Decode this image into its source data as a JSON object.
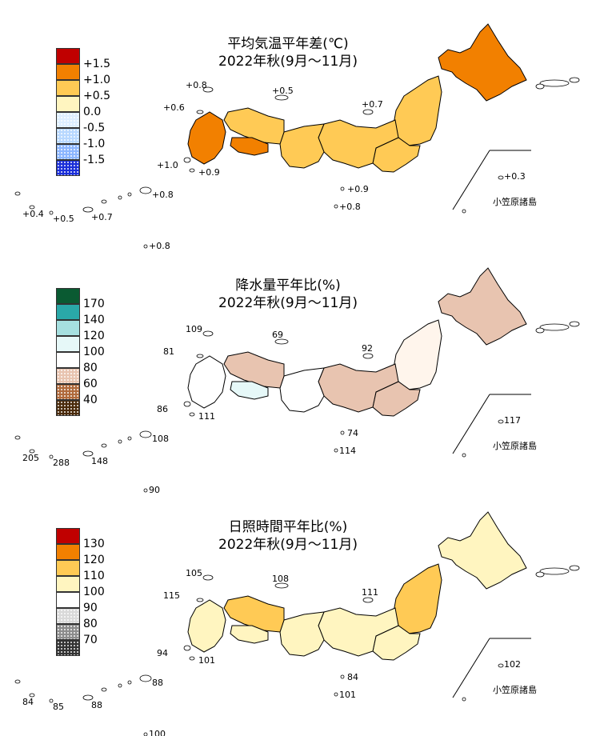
{
  "panels": [
    {
      "title_line1": "平均気温平年差(℃)",
      "title_line2": "2022年秋(9月～11月)",
      "legend": {
        "colors": [
          "#c00000",
          "#f28000",
          "#ffca55",
          "#fff5c0",
          "#ddeeff",
          "#b8d8ff",
          "#8cb6ff",
          "#1a2ed8"
        ],
        "patterned": [
          false,
          false,
          false,
          false,
          true,
          true,
          true,
          true
        ],
        "ticks": [
          "+1.5",
          "+1.0",
          "+0.5",
          "0.0",
          "-0.5",
          "-1.0",
          "-1.5"
        ]
      },
      "region_fills": {
        "hokkaido": "#f28000",
        "tohoku": "#ffca55",
        "kanto": "#ffca55",
        "chubu": "#ffca55",
        "kinki": "#ffca55",
        "chugoku": "#ffca55",
        "shikoku": "#f28000",
        "kyushu": "#f28000"
      },
      "labels": {
        "oki": "+0.8",
        "sado": "+0.5",
        "tsushima": "+0.6",
        "izu": "+0.7",
        "goto": "+1.0",
        "yaku": "+0.9",
        "hachijo": "+0.9",
        "chichijima": "+0.3",
        "minamidaito": "+0.8",
        "okinawa": "+0.7",
        "ishigaki": "+0.4",
        "yonaguni": "+0.5",
        "amami": "+0.8",
        "ogasawara_lower": "+0.8"
      },
      "ogasawara_name": "小笠原諸島"
    },
    {
      "title_line1": "降水量平年比(%)",
      "title_line2": "2022年秋(9月～11月)",
      "legend": {
        "colors": [
          "#0a5a32",
          "#2aa8a8",
          "#a6e0e0",
          "#e6f8f8",
          "#ffffff",
          "#e8c4b0",
          "#b06a3c",
          "#4a2a0a"
        ],
        "patterned": [
          false,
          false,
          false,
          false,
          false,
          true,
          true,
          true
        ],
        "ticks": [
          "170",
          "140",
          "120",
          "100",
          "80",
          "60",
          "40"
        ]
      },
      "region_fills": {
        "hokkaido": "#e8c4b0",
        "tohoku": "#fff5ec",
        "kanto": "#e8c4b0",
        "chubu": "#e8c4b0",
        "kinki": "#ffffff",
        "chugoku": "#e8c4b0",
        "shikoku": "#e6f8f8",
        "kyushu": "#ffffff"
      },
      "labels": {
        "oki": "109",
        "sado": "69",
        "tsushima": "81",
        "izu": "92",
        "goto": "86",
        "yaku": "111",
        "hachijo": "74",
        "chichijima": "117",
        "minamidaito": "108",
        "okinawa": "148",
        "ishigaki": "205",
        "yonaguni": "288",
        "amami": "114",
        "ogasawara_lower": "90"
      },
      "ogasawara_name": "小笠原諸島"
    },
    {
      "title_line1": "日照時間平年比(%)",
      "title_line2": "2022年秋(9月～11月)",
      "legend": {
        "colors": [
          "#c00000",
          "#f28000",
          "#ffca55",
          "#fff5c0",
          "#ffffff",
          "#d9d9d9",
          "#8c8c8c",
          "#333333"
        ],
        "patterned": [
          false,
          false,
          false,
          false,
          true,
          true,
          true,
          true
        ],
        "ticks": [
          "130",
          "120",
          "110",
          "100",
          "90",
          "80",
          "70"
        ]
      },
      "region_fills": {
        "hokkaido": "#fff5c0",
        "tohoku": "#ffca55",
        "kanto": "#fff5c0",
        "chubu": "#fff5c0",
        "kinki": "#fff5c0",
        "chugoku": "#ffca55",
        "shikoku": "#fff5c0",
        "kyushu": "#fff5c0"
      },
      "labels": {
        "oki": "105",
        "sado": "108",
        "tsushima": "115",
        "izu": "111",
        "goto": "94",
        "yaku": "101",
        "hachijo": "84",
        "chichijima": "102",
        "minamidaito": "88",
        "okinawa": "88",
        "ishigaki": "84",
        "yonaguni": "85",
        "amami": "101",
        "ogasawara_lower": "100"
      },
      "ogasawara_name": "小笠原諸島"
    }
  ]
}
